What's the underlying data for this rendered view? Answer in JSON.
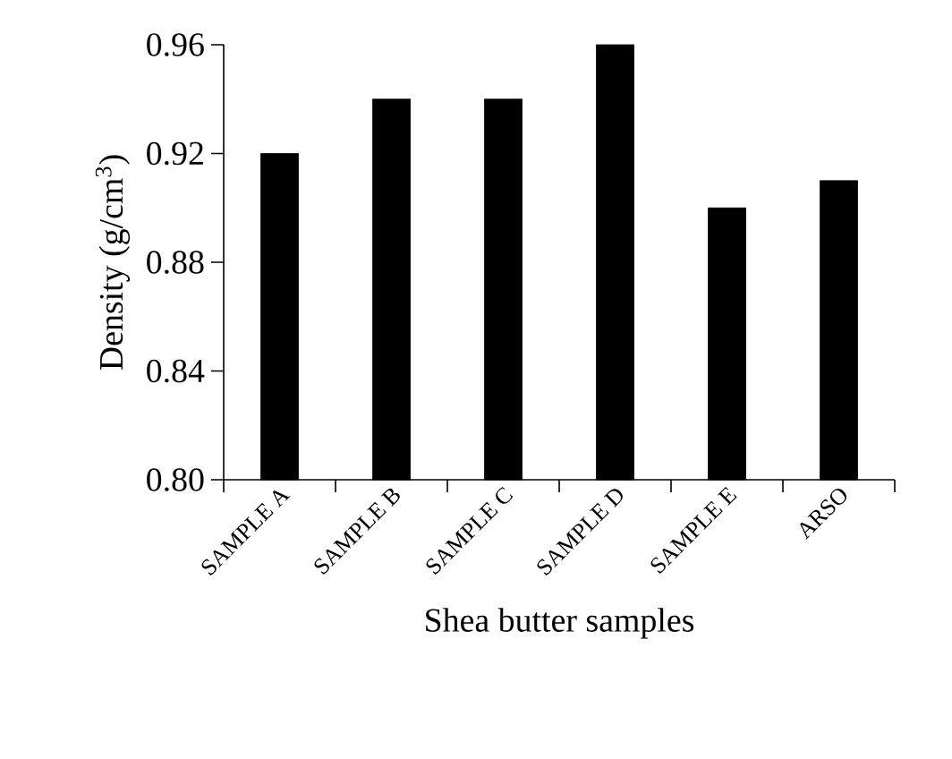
{
  "chart_data": {
    "type": "bar",
    "xlabel": "Shea butter samples",
    "ylabel": "Density (g/cm$^{3}$)",
    "categories": [
      "SAMPLE A",
      "SAMPLE B",
      "SAMPLE C",
      "SAMPLE D",
      "SAMPLE E",
      "ARSO"
    ],
    "values": [
      0.92,
      0.94,
      0.94,
      0.96,
      0.9,
      0.91
    ],
    "color": "#000000",
    "ylim": [
      0.8,
      0.96
    ],
    "yticks": [
      {
        "value": 0.8,
        "label": "0.80"
      },
      {
        "value": 0.84,
        "label": "0.84"
      },
      {
        "value": 0.88,
        "label": "0.88"
      },
      {
        "value": 0.92,
        "label": "0.92"
      },
      {
        "value": 0.96,
        "label": "0.96"
      }
    ],
    "grid": false
  }
}
